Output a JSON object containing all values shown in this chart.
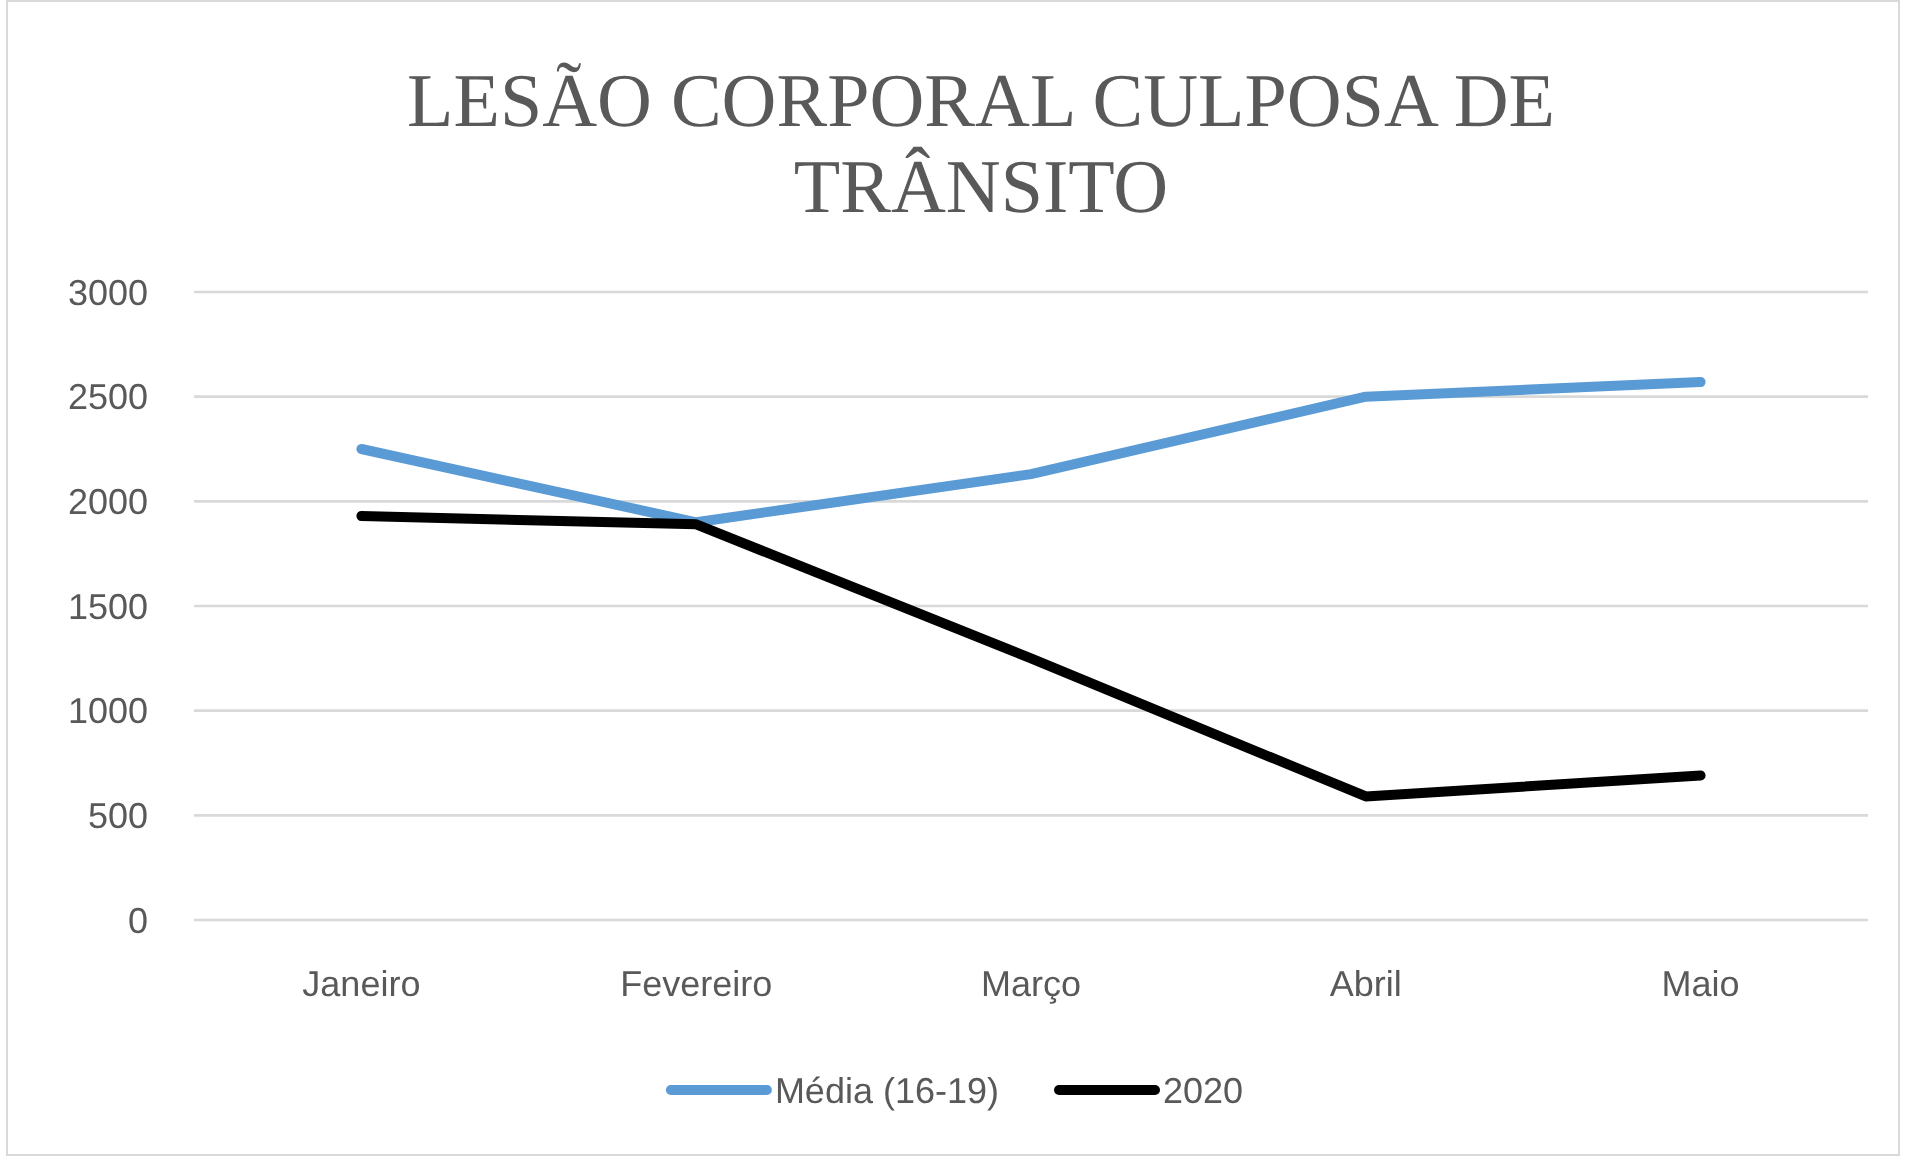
{
  "chart_data": {
    "type": "line",
    "title": "LESÃO CORPORAL CULPOSA DE TRÂNSITO",
    "categories": [
      "Janeiro",
      "Fevereiro",
      "Março",
      "Abril",
      "Maio"
    ],
    "series": [
      {
        "name": "Média (16-19)",
        "color": "#5b9bd5",
        "values": [
          2250,
          1900,
          2130,
          2500,
          2570
        ]
      },
      {
        "name": "2020",
        "color": "#000000",
        "values": [
          1930,
          1890,
          1250,
          590,
          690
        ]
      }
    ],
    "ylim": [
      0,
      3000
    ],
    "yticks": [
      0,
      500,
      1000,
      1500,
      2000,
      2500,
      3000
    ],
    "grid": "y",
    "legend": "bottom",
    "marker": "none",
    "line_style": "solid"
  }
}
